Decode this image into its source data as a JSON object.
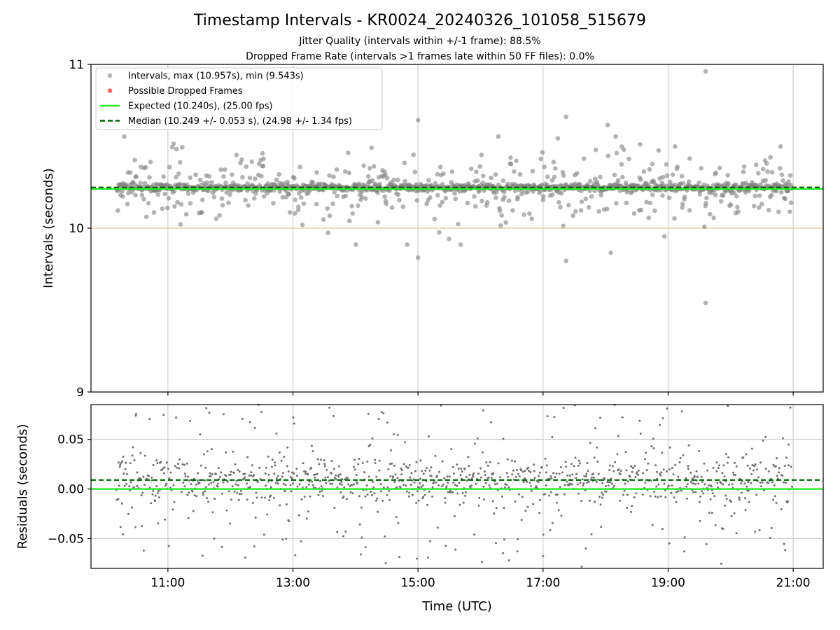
{
  "chart_data": [
    {
      "type": "scatter",
      "title": "Timestamp Intervals - KR0024_20240326_101058_515679",
      "subtitle_lines": [
        "Jitter Quality (intervals within +/-1 frame): 88.5%",
        "Dropped Frame Rate (intervals >1 frames late within 50 FF files): 0.0%"
      ],
      "xlabel": "",
      "ylabel": "Intervals (seconds)",
      "ylim": [
        9,
        11
      ],
      "yticks": [
        9,
        10,
        11
      ],
      "ytick_labels": [
        "9",
        "10",
        "11"
      ],
      "x_range_hours": [
        9.77,
        21.48
      ],
      "xticks_hours": [
        11,
        13,
        15,
        17,
        19,
        21
      ],
      "data_start_hour": 10.18,
      "data_end_hour": 20.98,
      "grid": true,
      "reference_lines": [
        {
          "name": "upper band",
          "value": 11,
          "color": "#e0c890"
        },
        {
          "name": "lower band",
          "value": 10,
          "color": "#e0c890"
        }
      ],
      "expected": 10.24,
      "median": 10.249,
      "max": 10.957,
      "min": 9.543,
      "legend_placement": "upper-left",
      "legend": [
        {
          "label": "Intervals, max (10.957s), min (9.543s)",
          "kind": "marker",
          "color": "#999999"
        },
        {
          "label": "Possible Dropped Frames",
          "kind": "marker",
          "color": "#ff6b6b"
        },
        {
          "label": "Expected (10.240s), (25.00 fps)",
          "kind": "solid",
          "color": "#22ee22"
        },
        {
          "label": "Median (10.249 +/- 0.053 s), (24.98 +/- 1.34 fps)",
          "kind": "dashed",
          "color": "#006400"
        }
      ],
      "notable_points": [
        {
          "x": "19:36",
          "y": 10.957
        },
        {
          "x": "19:36",
          "y": 9.543
        },
        {
          "x": "15:00",
          "y": 9.82
        },
        {
          "x": "17:22",
          "y": 9.8
        },
        {
          "x": "18:05",
          "y": 9.85
        },
        {
          "x": "15:00",
          "y": 10.66
        },
        {
          "x": "17:22",
          "y": 10.68
        },
        {
          "x": "18:02",
          "y": 10.63
        }
      ],
      "point_count_approx": 1300,
      "point_color": "#808080"
    },
    {
      "type": "scatter",
      "title": "",
      "xlabel": "Time (UTC)",
      "ylabel": "Residuals (seconds)",
      "ylim": [
        -0.08,
        0.085
      ],
      "yticks": [
        -0.05,
        0.0,
        0.05
      ],
      "ytick_labels": [
        "−0.05",
        "0.00",
        "0.05"
      ],
      "x_range_hours": [
        9.77,
        21.48
      ],
      "xticks_hours": [
        11,
        13,
        15,
        17,
        19,
        21
      ],
      "xtick_labels": [
        "11:00",
        "13:00",
        "15:00",
        "17:00",
        "19:00",
        "21:00"
      ],
      "grid": true,
      "expected_residual": 0.0,
      "median_residual": 0.009,
      "point_count_approx": 1300,
      "point_color": "#707070"
    }
  ],
  "colors": {
    "expected_line": "#22ee22",
    "median_line": "#006400",
    "points": "#808080",
    "dropped": "#ff6b6b",
    "band": "#e0c890",
    "grid": "#cccccc"
  }
}
